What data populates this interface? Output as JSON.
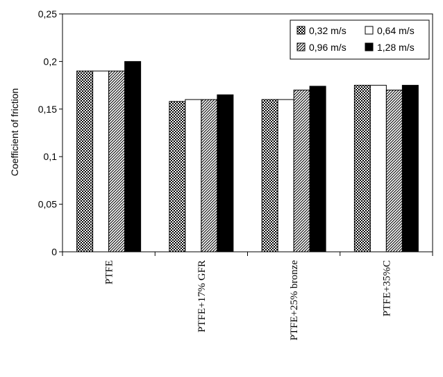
{
  "chart_data": {
    "type": "bar",
    "title": "",
    "xlabel": "",
    "ylabel": "Coefficient of friction",
    "ylim": [
      0,
      0.25
    ],
    "yticks": [
      "0",
      "0,05",
      "0,1",
      "0,15",
      "0,2",
      "0,25"
    ],
    "categories": [
      "PTFE",
      "PTFE+17% GFR",
      "PTFE+25% bronze",
      "PTFE+35%C"
    ],
    "series": [
      {
        "name": "0,32 m/s",
        "pattern": "crosshatch",
        "values": [
          0.19,
          0.158,
          0.16,
          0.175
        ]
      },
      {
        "name": "0,64 m/s",
        "pattern": "white",
        "values": [
          0.19,
          0.16,
          0.16,
          0.175
        ]
      },
      {
        "name": "0,96 m/s",
        "pattern": "diagonal",
        "values": [
          0.19,
          0.16,
          0.17,
          0.17
        ]
      },
      {
        "name": "1,28 m/s",
        "pattern": "black",
        "values": [
          0.2,
          0.165,
          0.174,
          0.175
        ]
      }
    ],
    "legend_position": "top-right",
    "grid": false,
    "colors": {
      "bar_outline": "#000000",
      "black_fill": "#000000",
      "white_fill": "#ffffff"
    }
  }
}
